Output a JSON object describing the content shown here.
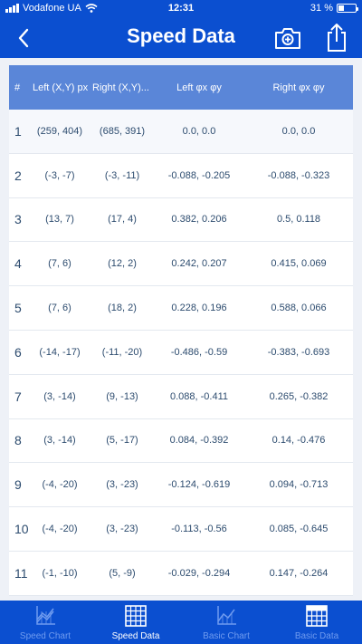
{
  "status_bar": {
    "carrier": "Vodafone UA",
    "time": "12:31",
    "battery": "31 %",
    "battery_level": 0.31
  },
  "nav": {
    "title": "Speed Data",
    "back_icon": "chevron-left-icon",
    "camera_icon": "camera-plus-icon",
    "share_icon": "share-icon"
  },
  "table": {
    "headers": [
      "#",
      "Left (X,Y) px",
      "Right (X,Y)...",
      "Left φx φy",
      "Right φx φy"
    ],
    "rows": [
      [
        "1",
        "(259, 404)",
        "(685, 391)",
        "0.0, 0.0",
        "0.0, 0.0"
      ],
      [
        "2",
        "(-3, -7)",
        "(-3, -11)",
        "-0.088, -0.205",
        "-0.088, -0.323"
      ],
      [
        "3",
        "(13, 7)",
        "(17, 4)",
        "0.382, 0.206",
        "0.5, 0.118"
      ],
      [
        "4",
        "(7, 6)",
        "(12, 2)",
        "0.242, 0.207",
        "0.415, 0.069"
      ],
      [
        "5",
        "(7, 6)",
        "(18, 2)",
        "0.228, 0.196",
        "0.588, 0.066"
      ],
      [
        "6",
        "(-14, -17)",
        "(-11, -20)",
        "-0.486, -0.59",
        "-0.383, -0.693"
      ],
      [
        "7",
        "(3, -14)",
        "(9, -13)",
        "0.088, -0.411",
        "0.265, -0.382"
      ],
      [
        "8",
        "(3, -14)",
        "(5, -17)",
        "0.084, -0.392",
        "0.14, -0.476"
      ],
      [
        "9",
        "(-4, -20)",
        "(3, -23)",
        "-0.124, -0.619",
        "0.094, -0.713"
      ],
      [
        "10",
        "(-4, -20)",
        "(3, -23)",
        "-0.113, -0.56",
        "0.085, -0.645"
      ],
      [
        "11",
        "(-1, -10)",
        "(5, -9)",
        "-0.029, -0.294",
        "0.147, -0.264"
      ]
    ]
  },
  "tabs": [
    {
      "label": "Speed Chart",
      "icon": "line-chart-icon",
      "active": false
    },
    {
      "label": "Speed Data",
      "icon": "grid-table-icon",
      "active": true
    },
    {
      "label": "Basic Chart",
      "icon": "area-chart-icon",
      "active": false
    },
    {
      "label": "Basic Data",
      "icon": "grid-table-icon",
      "active": false
    }
  ],
  "colors": {
    "primary": "#0b4fd0",
    "header": "#5a86d8",
    "text": "#2c4b6e",
    "inactive_tab": "#6f9bef"
  }
}
